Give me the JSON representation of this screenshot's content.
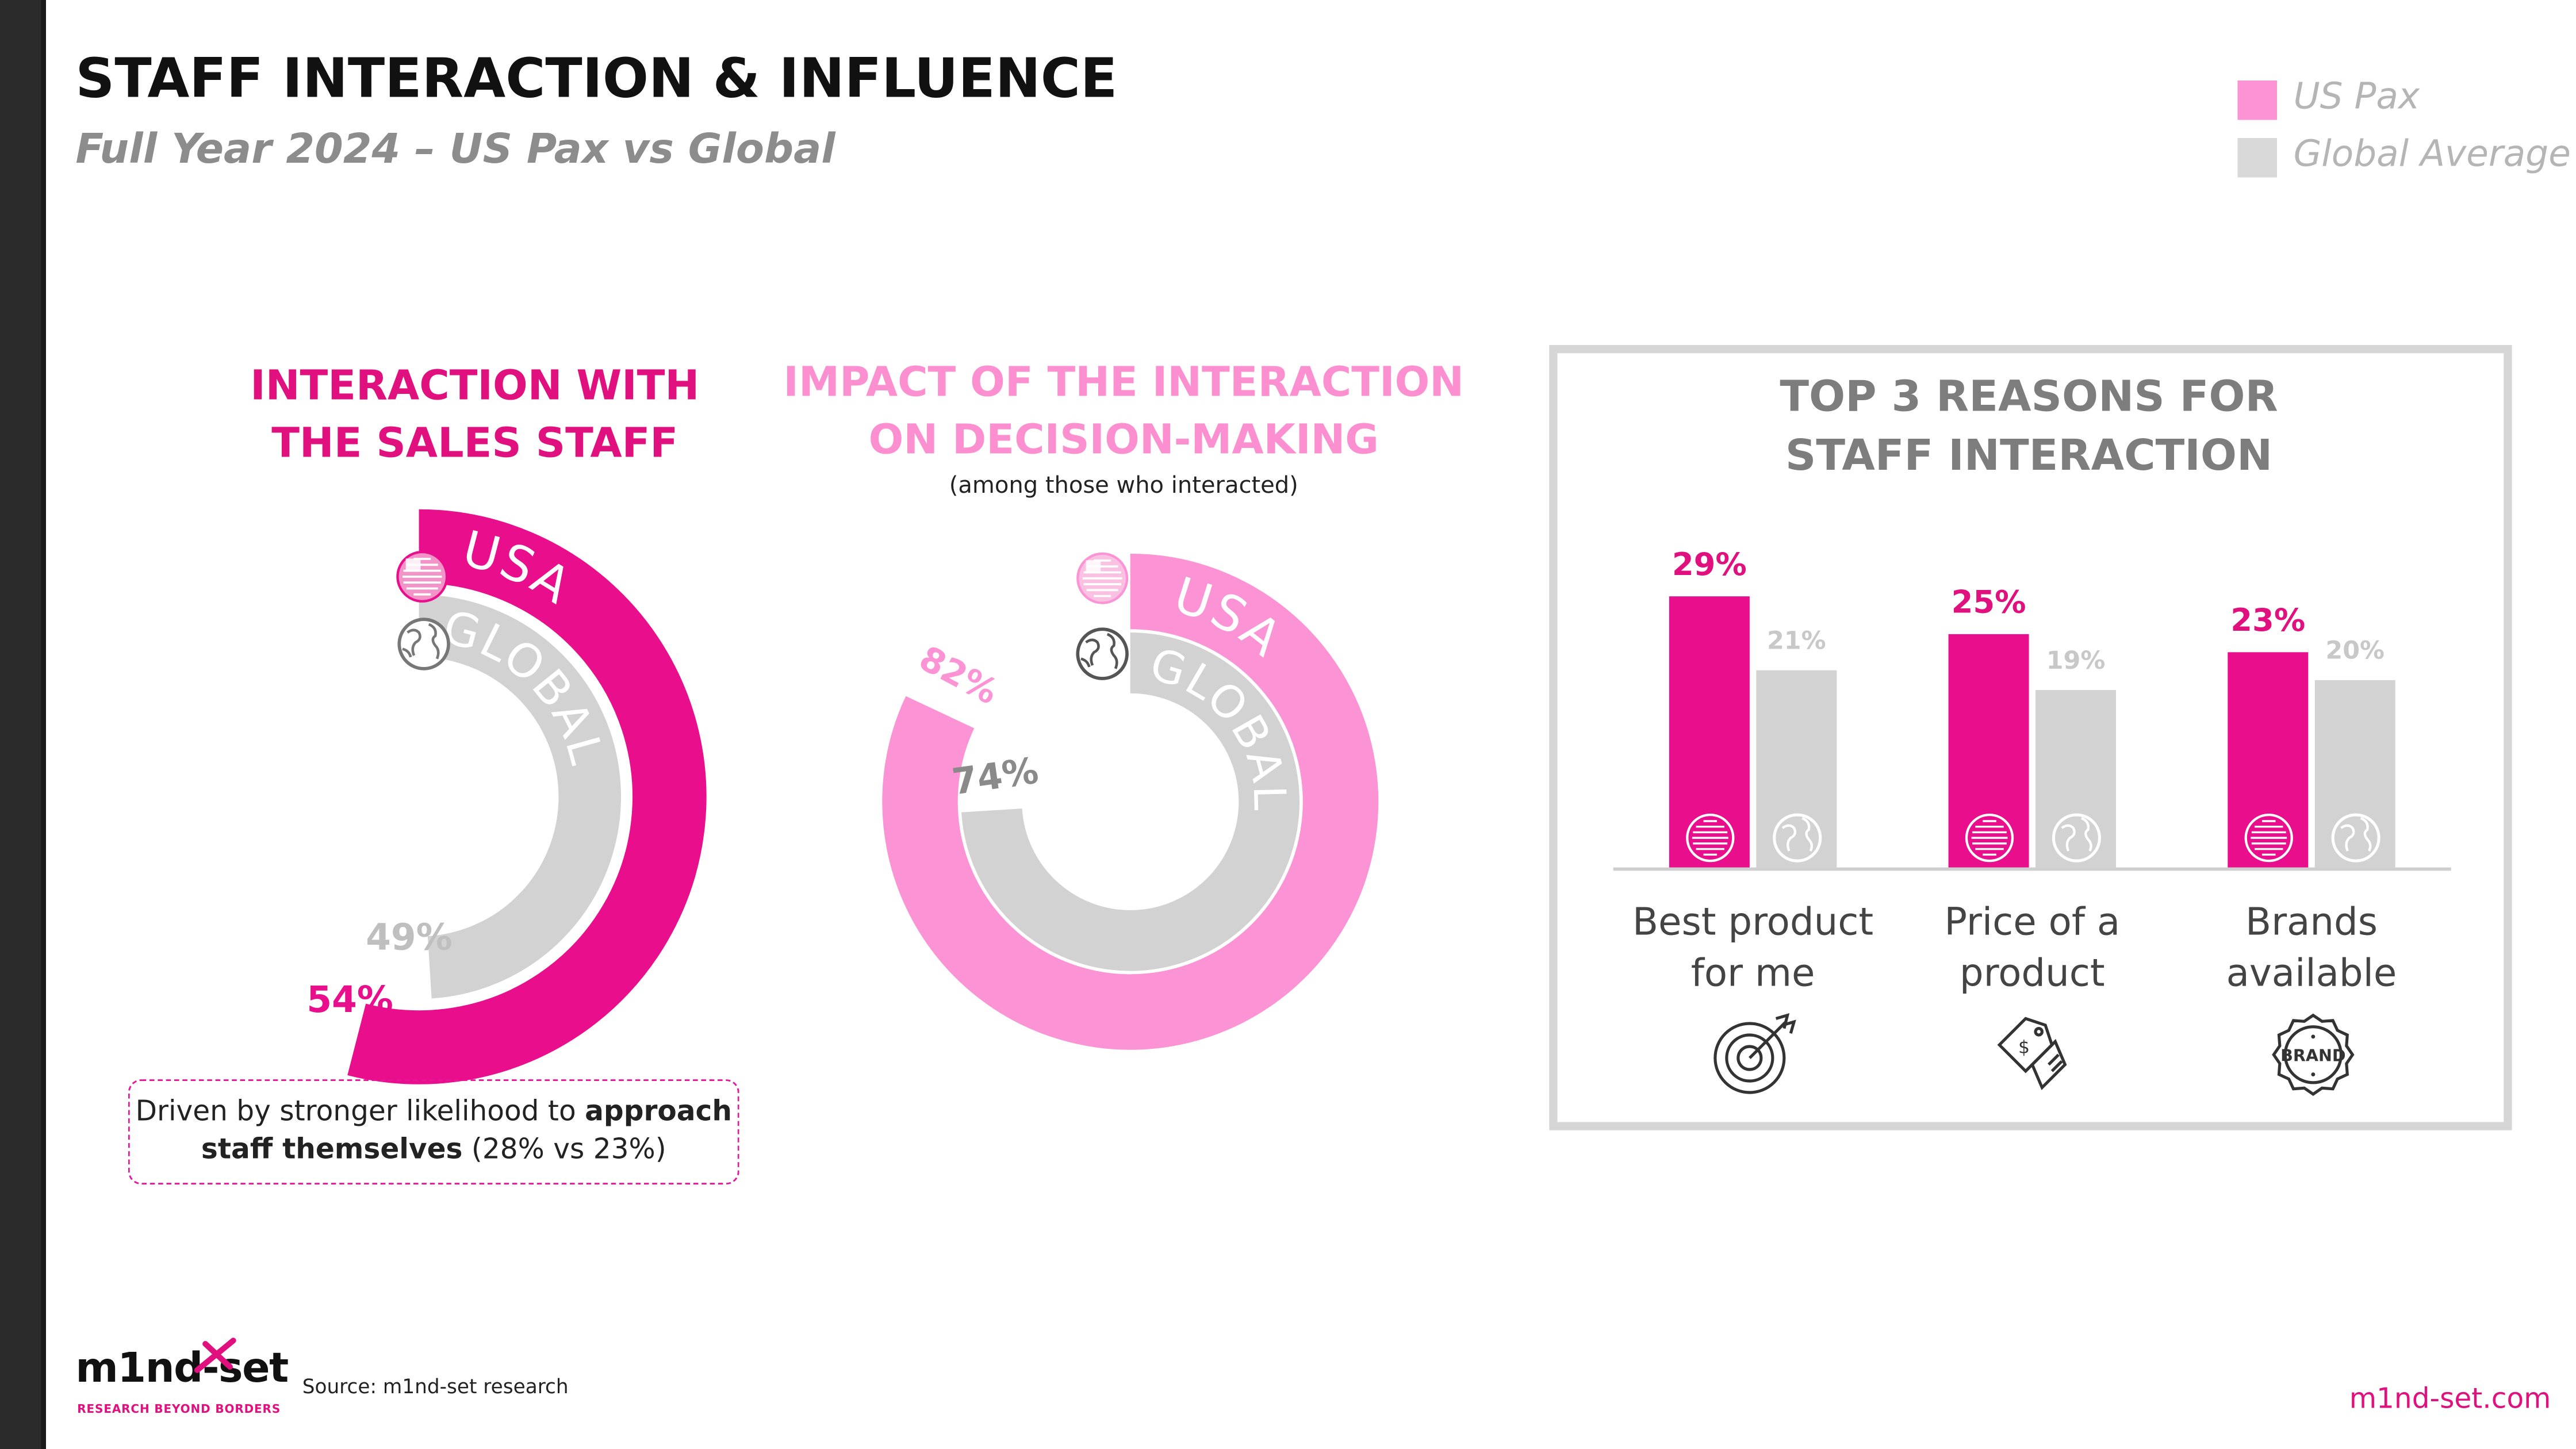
{
  "header": {
    "title": "STAFF INTERACTION & INFLUENCE",
    "subtitle": "Full Year 2024 – US Pax vs Global"
  },
  "legend": [
    {
      "label": "US Pax",
      "color": "#fb93d4"
    },
    {
      "label": "Global Average",
      "color": "#d9d9d9"
    }
  ],
  "colors": {
    "magenta": "#e90e8c",
    "pink": "#fb93d4",
    "grey": "#d2d2d2",
    "grey_text": "#bfbfbf",
    "title_magenta": "#e0107f"
  },
  "interaction": {
    "title_line1": "INTERACTION WITH",
    "title_line2": "THE SALES STAFF",
    "callout_plain1": "Driven by stronger likelihood to ",
    "callout_bold1": "approach",
    "callout_bold2": "staff themselves",
    "callout_plain2": " (28% vs 23%)"
  },
  "impact": {
    "title_line1": "IMPACT OF THE INTERACTION",
    "title_line2": "ON DECISION-MAKING",
    "note": "(among those who interacted)"
  },
  "reasons": {
    "title_line1": "TOP 3 REASONS FOR",
    "title_line2": "STAFF INTERACTION"
  },
  "chart_data": [
    {
      "type": "pie",
      "id": "interaction",
      "title": "INTERACTION WITH THE SALES STAFF",
      "series": [
        {
          "name": "USA",
          "value": 54,
          "label": "54%"
        },
        {
          "name": "GLOBAL",
          "value": 49,
          "label": "49%"
        }
      ],
      "unit": "%"
    },
    {
      "type": "pie",
      "id": "impact",
      "title": "IMPACT OF THE INTERACTION ON DECISION-MAKING",
      "series": [
        {
          "name": "USA",
          "value": 82,
          "label": "82%"
        },
        {
          "name": "GLOBAL",
          "value": 74,
          "label": "74%"
        }
      ],
      "unit": "%"
    },
    {
      "type": "bar",
      "id": "reasons",
      "title": "TOP 3 REASONS FOR STAFF INTERACTION",
      "categories": [
        "Best product for me",
        "Price of a product",
        "Brands available"
      ],
      "category_lines": [
        [
          "Best product",
          "for me"
        ],
        [
          "Price of a",
          "product"
        ],
        [
          "Brands",
          "available"
        ]
      ],
      "series": [
        {
          "name": "US Pax",
          "values": [
            29,
            25,
            23
          ],
          "labels": [
            "29%",
            "25%",
            "23%"
          ]
        },
        {
          "name": "Global Average",
          "values": [
            21,
            19,
            20
          ],
          "labels": [
            "21%",
            "19%",
            "20%"
          ]
        }
      ],
      "unit": "%"
    }
  ],
  "icons": {
    "us_flag": "us-flag-icon",
    "globe": "globe-icon",
    "target": "target-icon",
    "price_tag": "price-tag-icon",
    "brand_seal": "brand-seal-icon",
    "brand_seal_text": "BRAND"
  },
  "footer": {
    "logo_text": "m1nd-set",
    "logo_tagline": "RESEARCH BEYOND BORDERS",
    "source": "Source: m1nd-set research",
    "website": "m1nd-set.com"
  }
}
